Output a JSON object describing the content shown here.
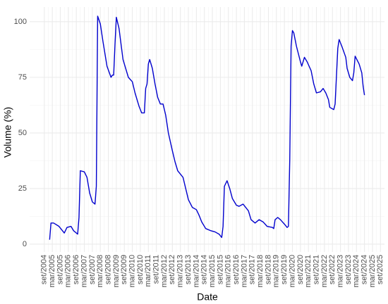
{
  "chart_data": {
    "type": "line",
    "x_label": "Date",
    "y_label": "Volume (%)",
    "x": [
      "2005-01",
      "2005-02",
      "2005-04",
      "2005-08",
      "2005-12",
      "2006-02",
      "2006-05",
      "2006-07",
      "2006-09",
      "2006-10",
      "2006-11",
      "2006-12",
      "2007-03",
      "2007-05",
      "2007-07",
      "2007-09",
      "2007-11",
      "2007-12",
      "2008-01",
      "2008-03",
      "2008-05",
      "2008-08",
      "2008-11",
      "2008-12",
      "2009-01",
      "2009-02",
      "2009-03",
      "2009-05",
      "2009-08",
      "2009-12",
      "2010-03",
      "2010-05",
      "2010-08",
      "2010-10",
      "2010-12",
      "2011-01",
      "2011-02",
      "2011-03",
      "2011-04",
      "2011-06",
      "2011-08",
      "2011-10",
      "2011-12",
      "2012-02",
      "2012-04",
      "2012-06",
      "2012-09",
      "2012-11",
      "2013-01",
      "2013-05",
      "2013-07",
      "2013-09",
      "2013-12",
      "2014-03",
      "2014-05",
      "2014-07",
      "2014-10",
      "2015-02",
      "2015-05",
      "2015-08",
      "2015-10",
      "2015-11",
      "2015-12",
      "2016-02",
      "2016-04",
      "2016-06",
      "2016-09",
      "2016-11",
      "2017-02",
      "2017-06",
      "2017-08",
      "2017-11",
      "2018-02",
      "2018-05",
      "2018-08",
      "2018-12",
      "2019-01",
      "2019-02",
      "2019-04",
      "2019-06",
      "2019-09",
      "2019-11",
      "2019-12",
      "2020-01",
      "2020-02",
      "2020-03",
      "2020-04",
      "2020-06",
      "2020-09",
      "2020-10",
      "2020-12",
      "2021-02",
      "2021-05",
      "2021-07",
      "2021-09",
      "2021-12",
      "2022-02",
      "2022-04",
      "2022-06",
      "2022-07",
      "2022-10",
      "2022-11",
      "2023-01",
      "2023-02",
      "2023-04",
      "2023-07",
      "2023-08",
      "2023-10",
      "2023-12",
      "2024-01",
      "2024-02",
      "2024-05",
      "2024-07",
      "2024-08",
      "2024-09"
    ],
    "series": [
      {
        "name": "Volume",
        "color": "#0000cd",
        "values": [
          2,
          9.5,
          9.5,
          8,
          5,
          7.5,
          8,
          6,
          5,
          4.5,
          12,
          33,
          32.5,
          30,
          23,
          19,
          18,
          26,
          102.5,
          99,
          91,
          80,
          75,
          76,
          76,
          90,
          102,
          97,
          83,
          75,
          73,
          68,
          62,
          59,
          59,
          70,
          72,
          81,
          83,
          79,
          72,
          66,
          63,
          63,
          58,
          50,
          42,
          37,
          33,
          30,
          25,
          20,
          16.5,
          15.5,
          13,
          10,
          7,
          6,
          5.5,
          4.5,
          3,
          8,
          26,
          28.5,
          25,
          20.5,
          17.5,
          17,
          18,
          15,
          11,
          9.5,
          11,
          10,
          8,
          7.5,
          7,
          11,
          12,
          11,
          9,
          7.5,
          8,
          38,
          89,
          96,
          95,
          89,
          82,
          80,
          84,
          82,
          78,
          72,
          68,
          68.5,
          70,
          68,
          65,
          61.5,
          60.5,
          63,
          88,
          92,
          89,
          84,
          79,
          75,
          73.5,
          77,
          84.5,
          81,
          77,
          71,
          67
        ]
      }
    ],
    "xlim": [
      "2003-10",
      "2025-12"
    ],
    "ylim": [
      -3.5,
      106.6
    ],
    "yticks": [
      0,
      25,
      50,
      75,
      100
    ],
    "xticks": [
      {
        "value": "2004-09",
        "label": "set/2004"
      },
      {
        "value": "2005-03",
        "label": "mar/2005"
      },
      {
        "value": "2005-09",
        "label": "set/2005"
      },
      {
        "value": "2006-03",
        "label": "mar/2006"
      },
      {
        "value": "2006-09",
        "label": "set/2006"
      },
      {
        "value": "2007-03",
        "label": "mar/2007"
      },
      {
        "value": "2007-09",
        "label": "set/2007"
      },
      {
        "value": "2008-03",
        "label": "mar/2008"
      },
      {
        "value": "2008-09",
        "label": "set/2008"
      },
      {
        "value": "2009-03",
        "label": "mar/2009"
      },
      {
        "value": "2009-09",
        "label": "set/2009"
      },
      {
        "value": "2010-03",
        "label": "mar/2010"
      },
      {
        "value": "2010-09",
        "label": "set/2010"
      },
      {
        "value": "2011-03",
        "label": "mar/2011"
      },
      {
        "value": "2011-09",
        "label": "set/2011"
      },
      {
        "value": "2012-03",
        "label": "mar/2012"
      },
      {
        "value": "2012-09",
        "label": "set/2012"
      },
      {
        "value": "2013-03",
        "label": "mar/2013"
      },
      {
        "value": "2013-09",
        "label": "set/2013"
      },
      {
        "value": "2014-03",
        "label": "mar/2014"
      },
      {
        "value": "2014-09",
        "label": "set/2014"
      },
      {
        "value": "2015-03",
        "label": "mar/2015"
      },
      {
        "value": "2015-09",
        "label": "set/2015"
      },
      {
        "value": "2016-03",
        "label": "mar/2016"
      },
      {
        "value": "2016-09",
        "label": "set/2016"
      },
      {
        "value": "2017-03",
        "label": "mar/2017"
      },
      {
        "value": "2017-09",
        "label": "set/2017"
      },
      {
        "value": "2018-03",
        "label": "mar/2018"
      },
      {
        "value": "2018-09",
        "label": "set/2018"
      },
      {
        "value": "2019-03",
        "label": "mar/2019"
      },
      {
        "value": "2019-09",
        "label": "set/2019"
      },
      {
        "value": "2020-03",
        "label": "mar/2020"
      },
      {
        "value": "2020-09",
        "label": "set/2020"
      },
      {
        "value": "2021-03",
        "label": "mar/2021"
      },
      {
        "value": "2021-09",
        "label": "set/2021"
      },
      {
        "value": "2022-03",
        "label": "mar/2022"
      },
      {
        "value": "2022-09",
        "label": "set/2022"
      },
      {
        "value": "2023-03",
        "label": "mar/2023"
      },
      {
        "value": "2023-09",
        "label": "set/2023"
      },
      {
        "value": "2024-03",
        "label": "mar/2024"
      },
      {
        "value": "2024-09",
        "label": "set/2024"
      },
      {
        "value": "2025-03",
        "label": "mar/2025"
      },
      {
        "value": "2025-09",
        "label": "set/2025"
      }
    ],
    "grid": true
  }
}
